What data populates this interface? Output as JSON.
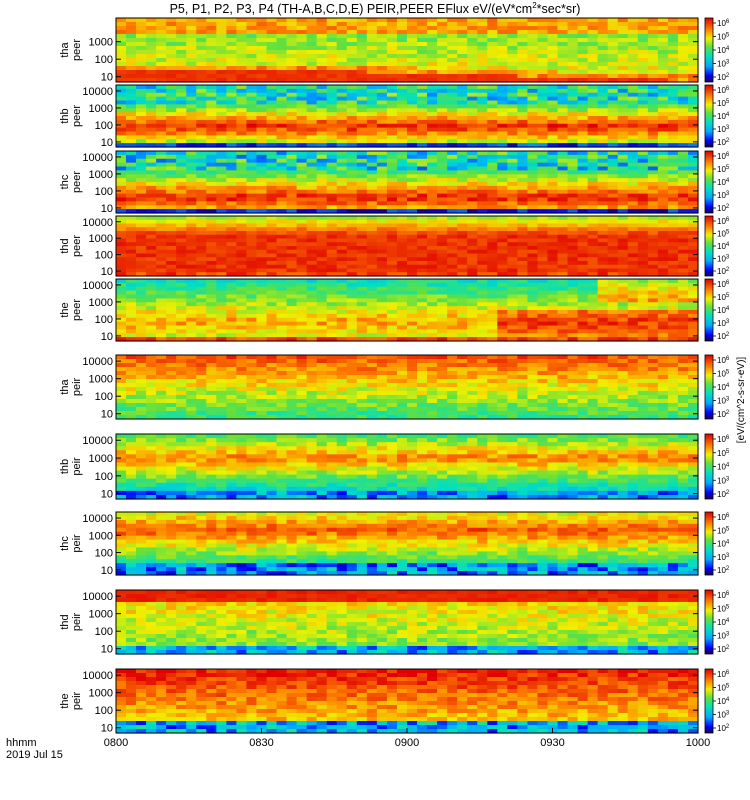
{
  "chart_data": {
    "type": "heatmap",
    "title": "P5, P1, P2, P3, P4 (TH-A,B,C,D,E) PEIR,PEER EFlux eV/(eV*cm^2*sec*sr)",
    "title_parts": {
      "prefix": "P5, P1, P2, P3, P4 (TH-A,B,C,D,E) PEIR,PEER EFlux eV/(eV*cm",
      "sup": "2",
      "suffix": "*sec*sr)"
    },
    "x_axis": {
      "label_row1": "hhmm",
      "label_row2": "2019 Jul 15",
      "ticks": [
        "0800",
        "0830",
        "0900",
        "0930",
        "1000"
      ],
      "range_hours": [
        8.0,
        10.0
      ]
    },
    "y_axis": {
      "scale": "log",
      "unit": "eV",
      "ticks": [
        "10",
        "100",
        "1000",
        "10000"
      ]
    },
    "colorbar": {
      "scale": "log",
      "ticks": [
        {
          "base": "10",
          "exp": "2"
        },
        {
          "base": "10",
          "exp": "3"
        },
        {
          "base": "10",
          "exp": "4"
        },
        {
          "base": "10",
          "exp": "5"
        },
        {
          "base": "10",
          "exp": "6"
        }
      ],
      "label": "[eV/(cm^2-s-sr-eV)]"
    },
    "panels": [
      {
        "probe": "tha",
        "species": "peer",
        "yticks": [
          "10",
          "100",
          "1000"
        ]
      },
      {
        "probe": "thb",
        "species": "peer",
        "yticks": [
          "10",
          "100",
          "1000",
          "10000"
        ]
      },
      {
        "probe": "thc",
        "species": "peer",
        "yticks": [
          "10",
          "100",
          "1000",
          "10000"
        ]
      },
      {
        "probe": "thd",
        "species": "peer",
        "yticks": [
          "10",
          "100",
          "1000",
          "10000"
        ]
      },
      {
        "probe": "the",
        "species": "peer",
        "yticks": [
          "10",
          "100",
          "1000",
          "10000"
        ]
      },
      {
        "probe": "tha",
        "species": "peir",
        "yticks": [
          "10",
          "100",
          "1000",
          "10000"
        ]
      },
      {
        "probe": "thb",
        "species": "peir",
        "yticks": [
          "10",
          "100",
          "1000",
          "10000"
        ]
      },
      {
        "probe": "thc",
        "species": "peir",
        "yticks": [
          "10",
          "100",
          "1000",
          "10000"
        ]
      },
      {
        "probe": "thd",
        "species": "peir",
        "yticks": [
          "10",
          "100",
          "1000",
          "10000"
        ]
      },
      {
        "probe": "the",
        "species": "peir",
        "yticks": [
          "10",
          "100",
          "1000",
          "10000"
        ]
      }
    ]
  }
}
